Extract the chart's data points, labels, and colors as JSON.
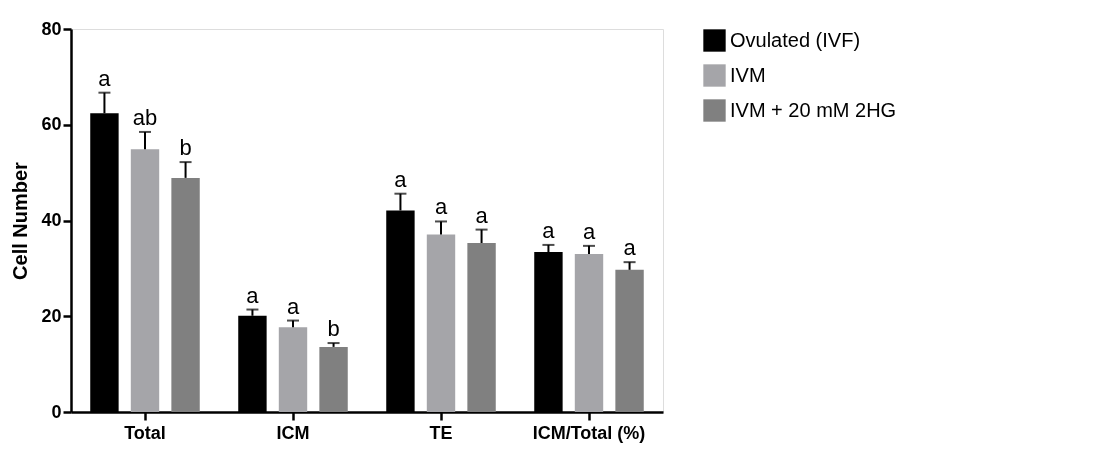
{
  "chart_data": {
    "type": "bar",
    "ylabel": "Cell Number",
    "categories": [
      "Total",
      "ICM",
      "TE",
      "ICM/Total (%)"
    ],
    "series": [
      {
        "name": "Ovulated (IVF)",
        "color": "#000000",
        "values": [
          62.4,
          20.1,
          42.1,
          33.4
        ],
        "errors": [
          4.3,
          1.3,
          3.5,
          1.5
        ],
        "value_labels": [
          "a",
          "a",
          "a",
          "a"
        ]
      },
      {
        "name": "IVM",
        "color": "#a5a5a9",
        "values": [
          54.9,
          17.7,
          37.1,
          33.0
        ],
        "errors": [
          3.6,
          1.4,
          2.7,
          1.7
        ],
        "value_labels": [
          "ab",
          "a",
          "a",
          "a"
        ]
      },
      {
        "name": "IVM + 20 mM 2HG",
        "color": "#808080",
        "values": [
          48.9,
          13.6,
          35.3,
          29.7
        ],
        "errors": [
          3.3,
          0.8,
          2.8,
          1.6
        ],
        "value_labels": [
          "b",
          "b",
          "a",
          "a"
        ]
      }
    ],
    "ylim": [
      0,
      80
    ],
    "yticks": [
      0,
      20,
      40,
      60,
      80
    ],
    "grid": false,
    "legend": "top right"
  }
}
